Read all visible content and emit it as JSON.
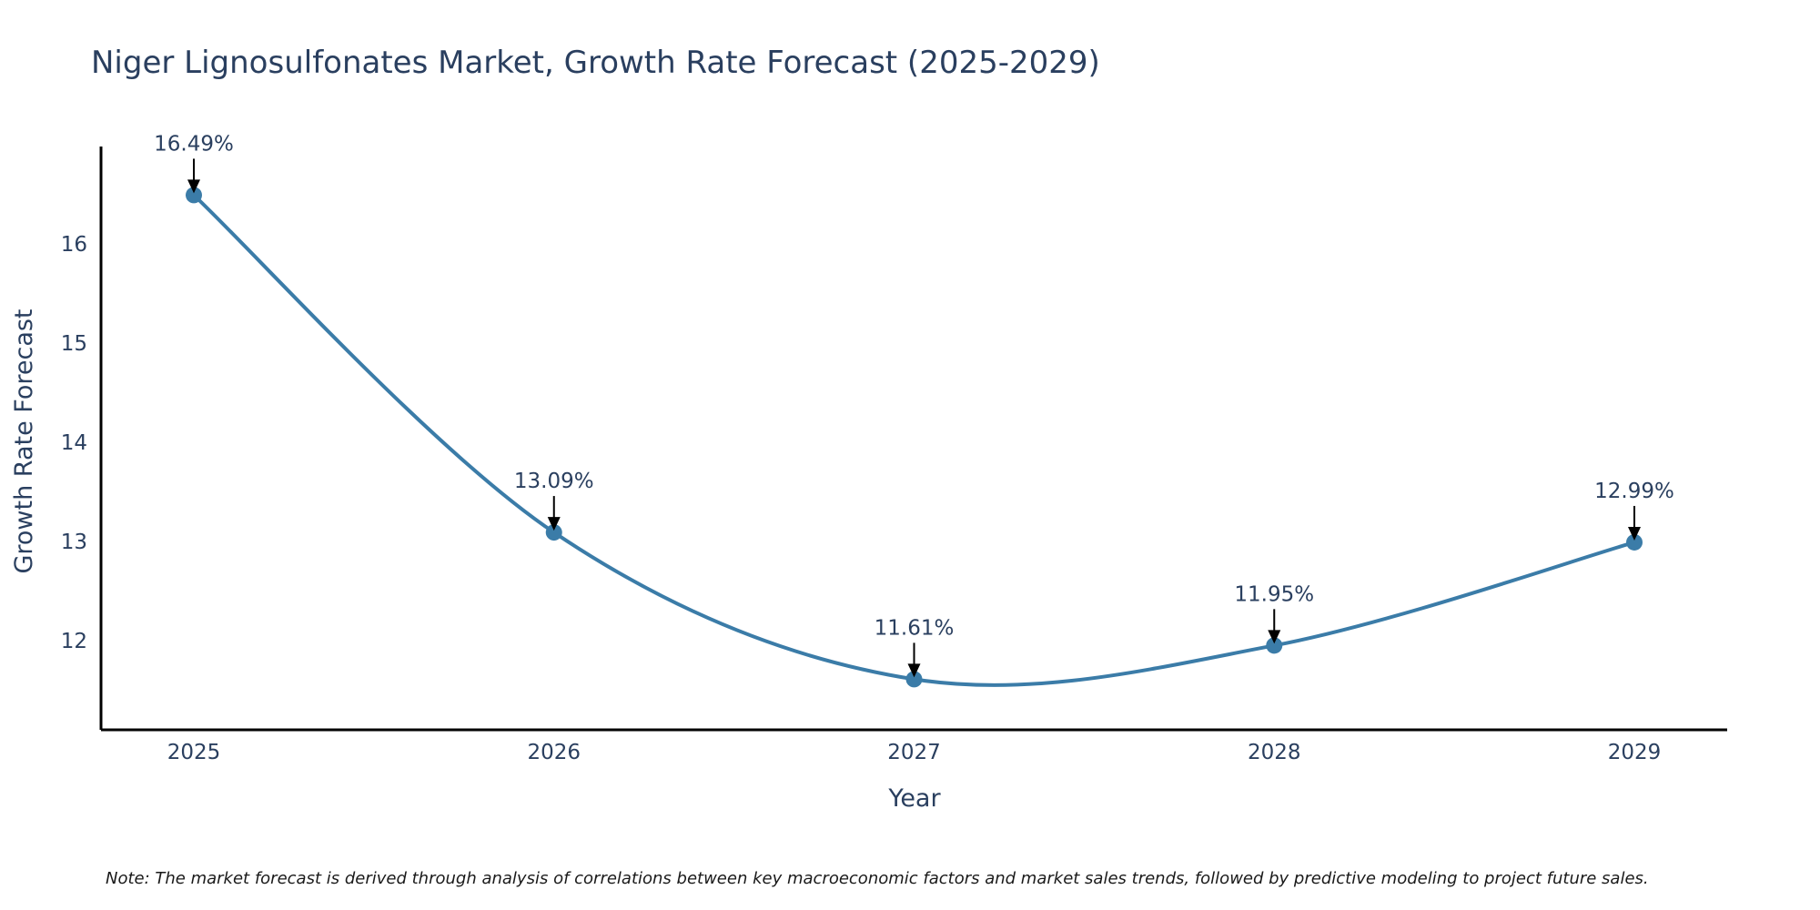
{
  "chart_data": {
    "type": "line",
    "title": "Niger Lignosulfonates Market, Growth Rate Forecast (2025-2029)",
    "xlabel": "Year",
    "ylabel": "Growth Rate Forecast",
    "categories": [
      "2025",
      "2026",
      "2027",
      "2028",
      "2029"
    ],
    "series": [
      {
        "name": "Growth Rate Forecast",
        "values": [
          16.49,
          13.09,
          11.61,
          11.95,
          12.99
        ]
      }
    ],
    "data_labels": [
      "16.49%",
      "13.09%",
      "11.61%",
      "11.95%",
      "12.99%"
    ],
    "y_ticks": [
      12,
      13,
      14,
      15,
      16
    ],
    "ylim": [
      11.1,
      16.98
    ],
    "grid": false,
    "line_color": "#3b7ca8",
    "text_color": "#2a3f5f",
    "note": "Note: The market forecast is derived through analysis of correlations between key macroeconomic factors and market sales trends, followed by predictive modeling to project future sales."
  }
}
